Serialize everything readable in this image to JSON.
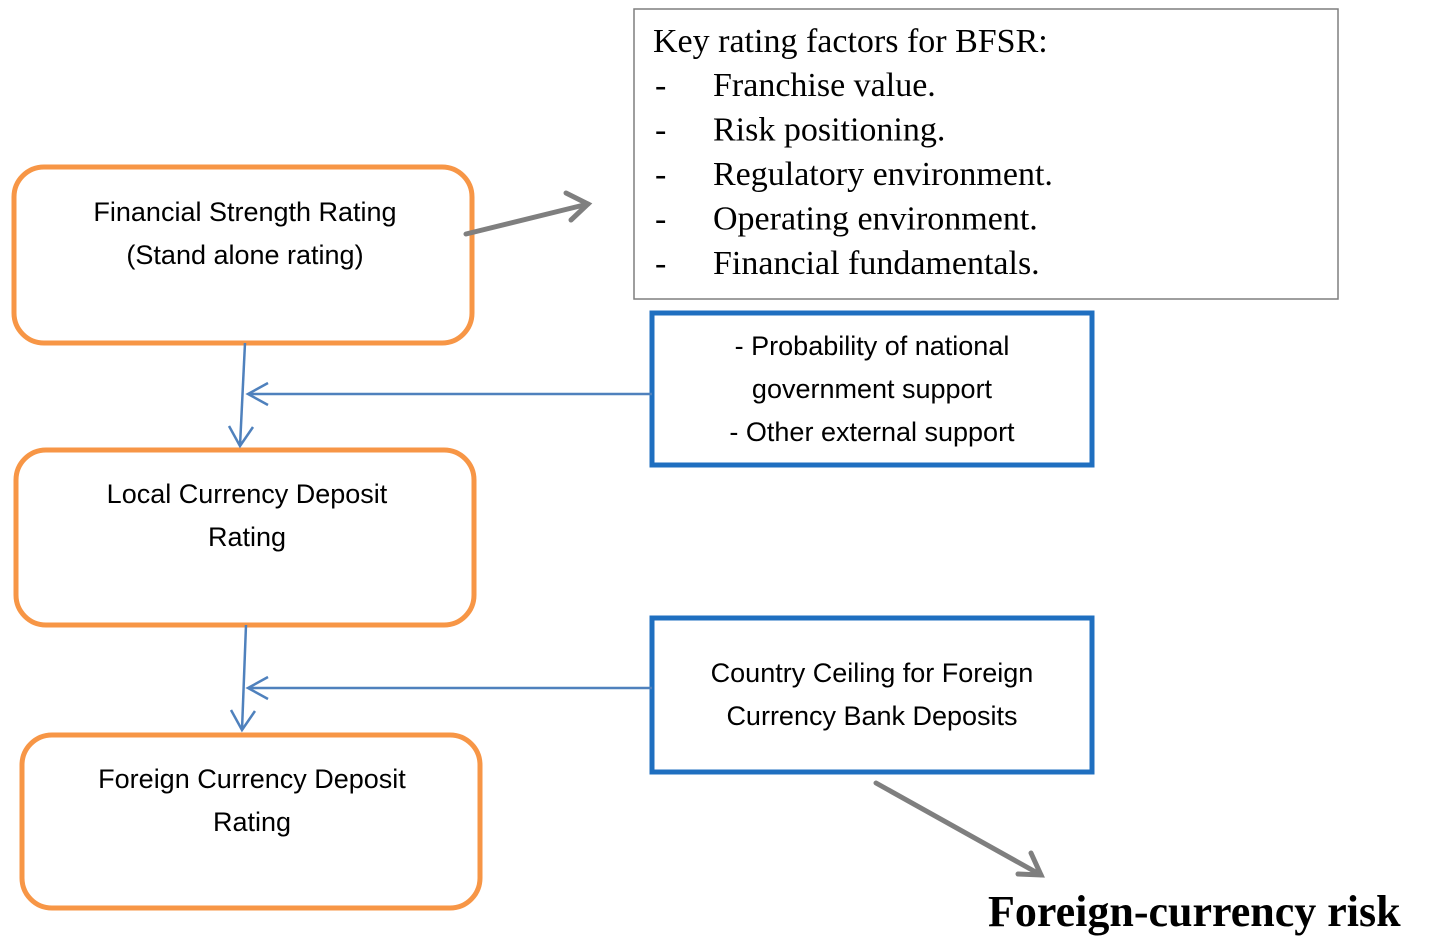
{
  "nodes": [
    {
      "lines": [
        "Financial Strength Rating",
        "(Stand alone rating)"
      ]
    },
    {
      "lines": [
        "Local Currency Deposit",
        "Rating"
      ]
    },
    {
      "lines": [
        "Foreign Currency Deposit",
        "Rating"
      ]
    }
  ],
  "factors": {
    "title": "Key rating factors for BFSR:",
    "bullet": "-",
    "items": [
      "Franchise value.",
      "Risk positioning.",
      "Regulatory environment.",
      "Operating environment.",
      "Financial fundamentals."
    ]
  },
  "inputs": [
    {
      "lines": [
        "- Probability of national",
        "government support",
        "- Other external support"
      ]
    },
    {
      "lines": [
        "Country Ceiling for Foreign",
        "Currency Bank Deposits"
      ]
    }
  ],
  "risk_label": "Foreign-currency risk"
}
